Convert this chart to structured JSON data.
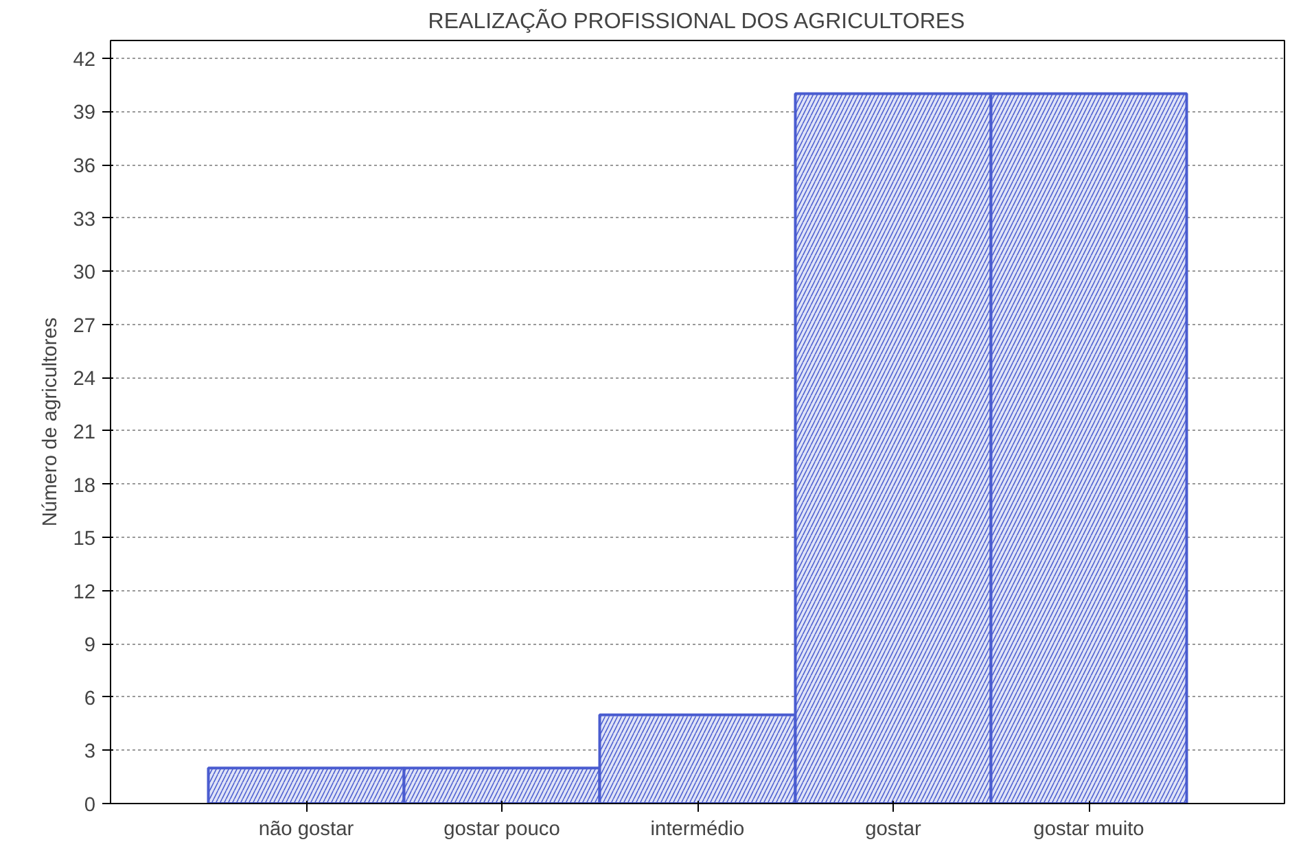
{
  "chart_data": {
    "type": "bar",
    "title": "REALIZAÇÃO PROFISSIONAL DOS AGRICULTORES",
    "ylabel": "Número de agricultores",
    "categories": [
      "não gostar",
      "gostar pouco",
      "intermédio",
      "gostar",
      "gostar muito"
    ],
    "values": [
      2,
      2,
      5,
      40,
      40
    ],
    "color": "#4a5cd0",
    "ylim": [
      0,
      43
    ],
    "yticks": [
      0,
      3,
      6,
      9,
      12,
      15,
      18,
      21,
      24,
      27,
      30,
      33,
      36,
      39,
      42
    ],
    "grid": "y"
  }
}
